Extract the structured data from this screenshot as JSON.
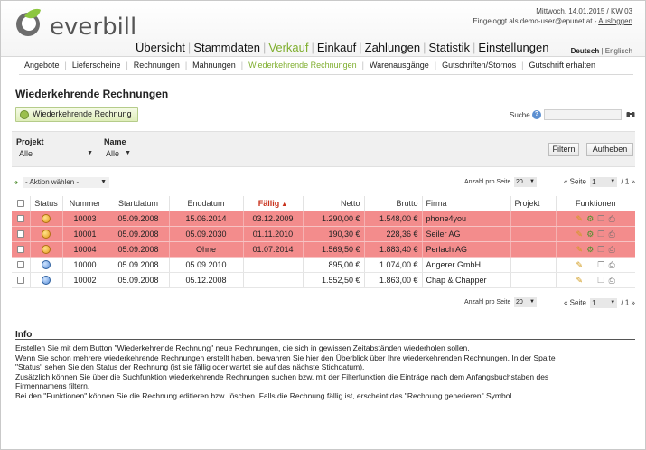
{
  "header": {
    "logo_text": "everbill",
    "date_line": "Mittwoch, 14.01.2015 / KW 03",
    "login_line": "Eingeloggt als demo-user@epunet.at - ",
    "logout_label": "Ausloggen",
    "lang_active": "Deutsch",
    "lang_sep": " | ",
    "lang_other": "Englisch"
  },
  "main_nav": [
    {
      "label": "Übersicht",
      "active": false
    },
    {
      "label": "Stammdaten",
      "active": false
    },
    {
      "label": "Verkauf",
      "active": true
    },
    {
      "label": "Einkauf",
      "active": false
    },
    {
      "label": "Zahlungen",
      "active": false
    },
    {
      "label": "Statistik",
      "active": false
    },
    {
      "label": "Einstellungen",
      "active": false
    }
  ],
  "sub_nav": [
    {
      "label": "Angebote",
      "active": false
    },
    {
      "label": "Lieferscheine",
      "active": false
    },
    {
      "label": "Rechnungen",
      "active": false
    },
    {
      "label": "Mahnungen",
      "active": false
    },
    {
      "label": "Wiederkehrende Rechnungen",
      "active": true
    },
    {
      "label": "Warenausgänge",
      "active": false
    },
    {
      "label": "Gutschriften/Stornos",
      "active": false
    },
    {
      "label": "Gutschrift erhalten",
      "active": false
    }
  ],
  "page_title": "Wiederkehrende Rechnungen",
  "new_button_label": "Wiederkehrende Rechnung",
  "search": {
    "label": "Suche",
    "help": "?",
    "value": ""
  },
  "filter": {
    "project_label": "Projekt",
    "project_value": "Alle",
    "name_label": "Name",
    "name_value": "Alle",
    "filter_button": "Filtern",
    "reset_button": "Aufheben"
  },
  "actions": {
    "select_value": "- Aktion wählen -",
    "per_page_label": "Anzahl pro Seite",
    "per_page_value": "20",
    "page_prefix": "« Seite",
    "page_value": "1",
    "page_suffix": "/ 1 »"
  },
  "table": {
    "columns": [
      "",
      "Status",
      "Nummer",
      "Startdatum",
      "Enddatum",
      "Fällig",
      "Netto",
      "Brutto",
      "Firma",
      "Projekt",
      "Funktionen"
    ],
    "sorted_column": "Fällig",
    "rows": [
      {
        "due": true,
        "number": "10003",
        "start": "05.09.2008",
        "end": "15.06.2014",
        "due_date": "03.12.2009",
        "net": "1.290,00 €",
        "gross": "1.548,00 €",
        "company": "phone4you",
        "project": ""
      },
      {
        "due": true,
        "number": "10001",
        "start": "05.09.2008",
        "end": "05.09.2030",
        "due_date": "01.11.2010",
        "net": "190,30 €",
        "gross": "228,36 €",
        "company": "Seiler AG",
        "project": ""
      },
      {
        "due": true,
        "number": "10004",
        "start": "05.09.2008",
        "end": "Ohne",
        "due_date": "01.07.2014",
        "net": "1.569,50 €",
        "gross": "1.883,40 €",
        "company": "Perlach AG",
        "project": ""
      },
      {
        "due": false,
        "number": "10000",
        "start": "05.09.2008",
        "end": "05.09.2010",
        "due_date": "",
        "net": "895,00 €",
        "gross": "1.074,00 €",
        "company": "Angerer GmbH",
        "project": ""
      },
      {
        "due": false,
        "number": "10002",
        "start": "05.09.2008",
        "end": "05.12.2008",
        "due_date": "",
        "net": "1.552,50 €",
        "gross": "1.863,00 €",
        "company": "Chap & Chapper",
        "project": ""
      }
    ]
  },
  "info": {
    "title": "Info",
    "lines": [
      "Erstellen Sie mit dem Button \"Wiederkehrende Rechnung\" neue Rechnungen, die sich in gewissen Zeitabständen wiederholen sollen.",
      "Wenn Sie schon mehrere wiederkehrende Rechnungen erstellt haben, bewahren Sie hier den Überblick über Ihre wiederkehrenden Rechnungen. In der Spalte",
      "\"Status\" sehen Sie den Status der Rechnung (ist sie fällig oder wartet sie auf das nächste Stichdatum).",
      "Zusätzlich können Sie über die Suchfunktion wiederkehrende Rechnungen suchen bzw. mit der Filterfunktion die Einträge nach dem Anfangsbuchstaben des",
      "Firmennamens filtern.",
      "Bei den \"Funktionen\" können Sie die Rechnung editieren bzw. löschen. Falls die Rechnung fällig ist, erscheint das \"Rechnung generieren\" Symbol."
    ]
  },
  "colors": {
    "accent_green": "#7fae2e",
    "due_row": "#f38c8c",
    "sort_red": "#c8321c"
  }
}
